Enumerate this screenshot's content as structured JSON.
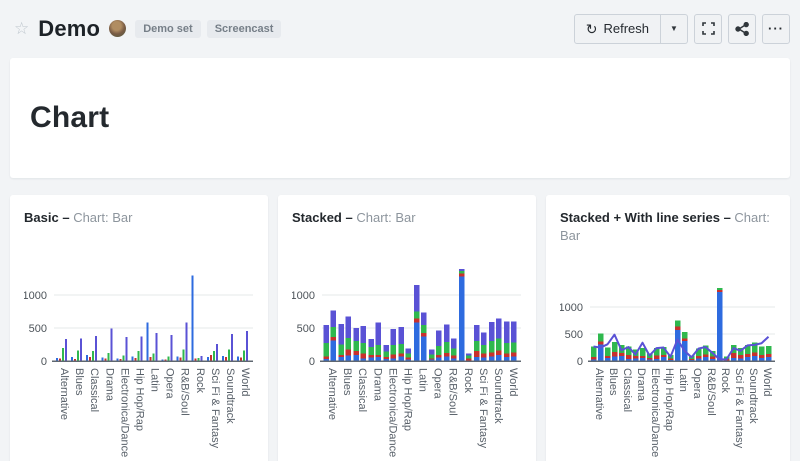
{
  "header": {
    "star_glyph": "☆",
    "title": "Demo",
    "tags": [
      "Demo set",
      "Screencast"
    ],
    "refresh_button": {
      "icon_glyph": "↻",
      "label": "Refresh"
    },
    "caret_glyph": "▼",
    "more_glyph": "···"
  },
  "title_card": {
    "title": "Chart"
  },
  "panels": [
    {
      "name": "Basic",
      "dash": "–",
      "subtitle": "Chart: Bar"
    },
    {
      "name": "Stacked",
      "dash": "–",
      "subtitle": "Chart: Bar"
    },
    {
      "name": "Stacked + With line series",
      "dash": "–",
      "subtitle": "Chart: Bar"
    }
  ],
  "colors": {
    "blue": "#2e6bdf",
    "red": "#c9302c",
    "green": "#2fb84e",
    "purple": "#5a52d5",
    "grid": "#e6e8ea",
    "axis": "#5f6770",
    "tick_text": "#4c5359"
  },
  "chart_data": [
    {
      "type": "bar",
      "mode": "grouped",
      "title": "Basic – Chart: Bar",
      "xlabel": "",
      "ylabel": "",
      "ylim": [
        0,
        1450
      ],
      "yticks": [
        0,
        500,
        1000
      ],
      "grid": true,
      "legend": false,
      "categories": [
        "Alternative",
        "Blues",
        "Classical",
        "Drama",
        "Electronica/Dance",
        "Hip Hop/Rap",
        "Latin",
        "Opera",
        "R&B/Soul",
        "Rock",
        "Sci Fi & Fantasy",
        "Soundtrack",
        "World"
      ],
      "series": [
        {
          "name": "series-blue",
          "color": "#2e6bdf",
          "values": [
            45,
            60,
            90,
            55,
            40,
            70,
            580,
            25,
            70,
            1290,
            60,
            75,
            65
          ]
        },
        {
          "name": "series-red",
          "color": "#c9302c",
          "values": [
            40,
            30,
            60,
            40,
            30,
            45,
            60,
            20,
            50,
            40,
            90,
            60,
            50
          ]
        },
        {
          "name": "series-green",
          "color": "#2fb84e",
          "values": [
            200,
            160,
            150,
            120,
            85,
            150,
            110,
            65,
            170,
            45,
            150,
            170,
            160
          ]
        },
        {
          "name": "series-purple",
          "color": "#5a52d5",
          "values": [
            330,
            340,
            380,
            490,
            360,
            370,
            420,
            390,
            580,
            75,
            260,
            410,
            450
          ]
        }
      ]
    },
    {
      "type": "bar",
      "mode": "stacked",
      "title": "Stacked – Chart: Bar",
      "xlabel": "",
      "ylabel": "",
      "ylim": [
        0,
        1450
      ],
      "yticks": [
        0,
        500,
        1000
      ],
      "grid": true,
      "legend": false,
      "categories": [
        "Alternative",
        "Blues",
        "Classical",
        "Drama",
        "Electronica/Dance",
        "Hip Hop/Rap",
        "Latin",
        "Opera",
        "R&B/Soul",
        "Rock",
        "Sci Fi & Fantasy",
        "Soundtrack",
        "World"
      ],
      "segment_names": [
        "blue",
        "red",
        "green",
        "purple"
      ],
      "segment_colors": [
        "#2e6bdf",
        "#c9302c",
        "#2fb84e",
        "#5a52d5"
      ],
      "bars_per_category": 2,
      "stacks": [
        [
          30,
          40,
          200,
          270
        ],
        [
          310,
          50,
          150,
          250
        ],
        [
          60,
          30,
          160,
          310
        ],
        [
          80,
          90,
          180,
          320
        ],
        [
          90,
          60,
          150,
          200
        ],
        [
          40,
          70,
          160,
          260
        ],
        [
          50,
          40,
          120,
          120
        ],
        [
          60,
          30,
          150,
          340
        ],
        [
          30,
          30,
          80,
          100
        ],
        [
          40,
          60,
          140,
          240
        ],
        [
          70,
          40,
          150,
          250
        ],
        [
          20,
          30,
          60,
          80
        ],
        [
          580,
          60,
          110,
          400
        ],
        [
          370,
          50,
          120,
          190
        ],
        [
          20,
          20,
          60,
          70
        ],
        [
          50,
          40,
          140,
          230
        ],
        [
          70,
          50,
          170,
          260
        ],
        [
          40,
          40,
          110,
          150
        ],
        [
          1280,
          40,
          40,
          30
        ],
        [
          10,
          30,
          40,
          30
        ],
        [
          60,
          90,
          150,
          240
        ],
        [
          50,
          60,
          130,
          190
        ],
        [
          70,
          60,
          170,
          290
        ],
        [
          90,
          70,
          180,
          300
        ],
        [
          60,
          50,
          160,
          330
        ],
        [
          70,
          60,
          150,
          320
        ]
      ]
    },
    {
      "type": "bar+line",
      "mode": "stacked",
      "title": "Stacked + With line series – Chart: Bar",
      "xlabel": "",
      "ylabel": "",
      "ylim": [
        0,
        1450
      ],
      "yticks": [
        0,
        500,
        1000
      ],
      "grid": true,
      "legend": false,
      "categories": [
        "Alternative",
        "Blues",
        "Classical",
        "Drama",
        "Electronica/Dance",
        "Hip Hop/Rap",
        "Latin",
        "Opera",
        "R&B/Soul",
        "Rock",
        "Sci Fi & Fantasy",
        "Soundtrack",
        "World"
      ],
      "segment_names": [
        "blue",
        "red",
        "green"
      ],
      "segment_colors": [
        "#2e6bdf",
        "#c9302c",
        "#2fb84e"
      ],
      "bars_per_category": 2,
      "stacks": [
        [
          30,
          40,
          200
        ],
        [
          310,
          50,
          150
        ],
        [
          60,
          30,
          160
        ],
        [
          80,
          90,
          180
        ],
        [
          90,
          60,
          150
        ],
        [
          40,
          70,
          160
        ],
        [
          50,
          40,
          120
        ],
        [
          60,
          30,
          150
        ],
        [
          30,
          30,
          80
        ],
        [
          40,
          60,
          140
        ],
        [
          70,
          40,
          150
        ],
        [
          20,
          30,
          60
        ],
        [
          580,
          60,
          110
        ],
        [
          370,
          50,
          120
        ],
        [
          20,
          20,
          60
        ],
        [
          50,
          40,
          140
        ],
        [
          70,
          50,
          170
        ],
        [
          40,
          40,
          110
        ],
        [
          1280,
          40,
          40
        ],
        [
          10,
          30,
          40
        ],
        [
          60,
          90,
          150
        ],
        [
          50,
          60,
          130
        ],
        [
          70,
          60,
          170
        ],
        [
          90,
          70,
          180
        ],
        [
          60,
          50,
          160
        ],
        [
          70,
          60,
          150
        ]
      ],
      "line": {
        "name": "line-purple",
        "color": "#5a52d5",
        "values": [
          270,
          250,
          310,
          490,
          200,
          260,
          120,
          340,
          100,
          240,
          250,
          80,
          400,
          190,
          70,
          230,
          260,
          150,
          30,
          30,
          240,
          190,
          290,
          300,
          330,
          450
        ]
      }
    }
  ]
}
